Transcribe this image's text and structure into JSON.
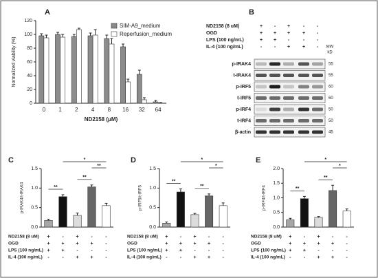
{
  "chart_data": [
    {
      "type": "bar",
      "panel_label": "A",
      "ylabel": "Normalized viability (%)",
      "xlabel": "ND2158 (μM)",
      "categories": [
        "0",
        "1",
        "2",
        "4",
        "8",
        "16",
        "32",
        "64"
      ],
      "series": [
        {
          "name": "SIM-A9_medium",
          "color": "#8c8c8c",
          "values": [
            98,
            100,
            97,
            98,
            94,
            82,
            42,
            2
          ],
          "errors": [
            3,
            3,
            3,
            4,
            5,
            4,
            6,
            2
          ]
        },
        {
          "name": "Reperfusion_medium",
          "color": "#ffffff",
          "values": [
            95,
            96,
            107,
            99,
            86,
            31,
            5,
            0
          ],
          "errors": [
            4,
            4,
            2,
            8,
            8,
            4,
            3,
            1
          ]
        }
      ],
      "ylim": [
        0,
        120
      ],
      "yticks": [
        0,
        20,
        40,
        60,
        80,
        100,
        120
      ],
      "legend": "top-right"
    },
    {
      "type": "bar",
      "panel_label": "C",
      "ylabel": "p-IRAK4/t-IRAK4",
      "values": [
        0.17,
        0.78,
        0.3,
        1.03,
        0.55
      ],
      "errors": [
        0.03,
        0.05,
        0.06,
        0.05,
        0.06
      ],
      "colors": [
        "#a6a6a6",
        "#111111",
        "#dcdcdc",
        "#666666",
        "#ffffff"
      ],
      "ylim": [
        0,
        1.5
      ],
      "yticks": [
        {
          "value": 0,
          "label": "0.0"
        },
        {
          "value": 0.5,
          "label": "0.5"
        },
        {
          "value": 1,
          "label": "1.0"
        },
        {
          "value": 1.5,
          "label": "1.5"
        }
      ],
      "significance": [
        "**",
        "**",
        "**",
        "*"
      ],
      "treatments": [
        {
          "label": "ND2158 (8 uM)",
          "signs": [
            "+",
            "-",
            "+",
            "-",
            "-"
          ]
        },
        {
          "label": "OGD",
          "signs": [
            "+",
            "+",
            "+",
            "+",
            "-"
          ]
        },
        {
          "label": "LPS (100 ng/mL)",
          "signs": [
            "+",
            "+",
            "-",
            "-",
            "-"
          ]
        },
        {
          "label": "IL-4 (100 ng/mL)",
          "signs": [
            "-",
            "-",
            "+",
            "+",
            "-"
          ]
        }
      ]
    },
    {
      "type": "bar",
      "panel_label": "D",
      "ylabel": "p-IRF5/t-IRF5",
      "values": [
        0.1,
        0.9,
        0.32,
        0.8,
        0.55
      ],
      "errors": [
        0.03,
        0.08,
        0.03,
        0.05,
        0.07
      ],
      "colors": [
        "#a6a6a6",
        "#111111",
        "#dcdcdc",
        "#666666",
        "#ffffff"
      ],
      "ylim": [
        0,
        1.5
      ],
      "yticks": [
        {
          "value": 0,
          "label": "0.0"
        },
        {
          "value": 0.5,
          "label": "0.5"
        },
        {
          "value": 1,
          "label": "1.0"
        },
        {
          "value": 1.5,
          "label": "1.5"
        }
      ],
      "significance": [
        "**",
        "**",
        "*",
        "*"
      ],
      "treatments": [
        {
          "label": "ND2158 (8 uM)",
          "signs": [
            "+",
            "-",
            "+",
            "-",
            "-"
          ]
        },
        {
          "label": "OGD",
          "signs": [
            "+",
            "+",
            "+",
            "+",
            "-"
          ]
        },
        {
          "label": "LPS (100 ng/mL)",
          "signs": [
            "+",
            "+",
            "-",
            "-",
            "-"
          ]
        },
        {
          "label": "IL-4 (100 ng/mL)",
          "signs": [
            "-",
            "-",
            "+",
            "+",
            "-"
          ]
        }
      ]
    },
    {
      "type": "bar",
      "panel_label": "E",
      "ylabel": "p-IRF4/t-IRF4",
      "values": [
        0.25,
        0.97,
        0.33,
        1.25,
        0.55
      ],
      "errors": [
        0.05,
        0.08,
        0.03,
        0.18,
        0.07
      ],
      "colors": [
        "#a6a6a6",
        "#111111",
        "#dcdcdc",
        "#666666",
        "#ffffff"
      ],
      "ylim": [
        0,
        2
      ],
      "yticks": [
        {
          "value": 0,
          "label": "0.0"
        },
        {
          "value": 0.5,
          "label": "0.5"
        },
        {
          "value": 1,
          "label": "1.0"
        },
        {
          "value": 1.5,
          "label": "1.5"
        },
        {
          "value": 2,
          "label": "2.0"
        }
      ],
      "significance": [
        "**",
        "**",
        "*",
        "*"
      ],
      "treatments": [
        {
          "label": "ND2158 (8 uM)",
          "signs": [
            "+",
            "-",
            "+",
            "-",
            "-"
          ]
        },
        {
          "label": "OGD",
          "signs": [
            "+",
            "+",
            "+",
            "+",
            "-"
          ]
        },
        {
          "label": "LPS (100 ng/mL)",
          "signs": [
            "+",
            "+",
            "-",
            "-",
            "-"
          ]
        },
        {
          "label": "IL-4 (100 ng/mL)",
          "signs": [
            "-",
            "-",
            "+",
            "+",
            "-"
          ]
        }
      ]
    }
  ],
  "blot": {
    "panel_label": "B",
    "mw_header": "MW",
    "mw_unit": "kD",
    "treatments": [
      {
        "label": "ND2158 (8 uM)",
        "signs": [
          "+",
          "-",
          "+",
          "-",
          "-"
        ]
      },
      {
        "label": "OGD",
        "signs": [
          "+",
          "+",
          "+",
          "+",
          "-"
        ]
      },
      {
        "label": "LPS (100 ng/mL)",
        "signs": [
          "+",
          "+",
          "-",
          "-",
          "-"
        ]
      },
      {
        "label": "IL-4 (100 ng/mL)",
        "signs": [
          "-",
          "-",
          "+",
          "+",
          "-"
        ]
      }
    ],
    "rows": [
      {
        "label": "p-IRAK4",
        "mw": "55"
      },
      {
        "label": "t-IRAK4",
        "mw": "55"
      },
      {
        "label": "p-IRF5",
        "mw": "60"
      },
      {
        "label": "t-IRF5",
        "mw": "60"
      },
      {
        "label": "p-IRF4",
        "mw": "50"
      },
      {
        "label": "t-IRF4",
        "mw": "50"
      },
      {
        "label": "β-actin",
        "mw": "45"
      }
    ]
  }
}
